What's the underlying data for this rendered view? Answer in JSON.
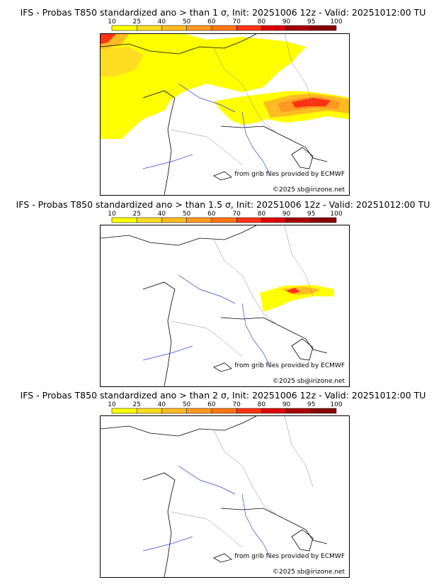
{
  "colorbar": {
    "ticks": [
      "10",
      "25",
      "40",
      "50",
      "60",
      "70",
      "80",
      "90",
      "95",
      "100"
    ],
    "colors": [
      "#ffff00",
      "#ffdd22",
      "#ffbb22",
      "#ff9922",
      "#ff7711",
      "#ff3311",
      "#dd0000",
      "#aa0000",
      "#880000"
    ]
  },
  "credits": {
    "source": "from grib files provided by ECMWF",
    "copyright": "©2025 sb@irizone.net"
  },
  "panels": [
    {
      "title": "IFS - Probas T850  standardized ano > than 1 σ, Init: 20251006 12z - Valid: 20251012:00 TU"
    },
    {
      "title": "IFS - Probas T850  standardized ano > than 1.5 σ, Init: 20251006 12z - Valid: 20251012:00 TU"
    },
    {
      "title": "IFS - Probas T850  standardized ano > than 2 σ, Init: 20251006 12z - Valid: 20251012:00 TU"
    }
  ]
}
